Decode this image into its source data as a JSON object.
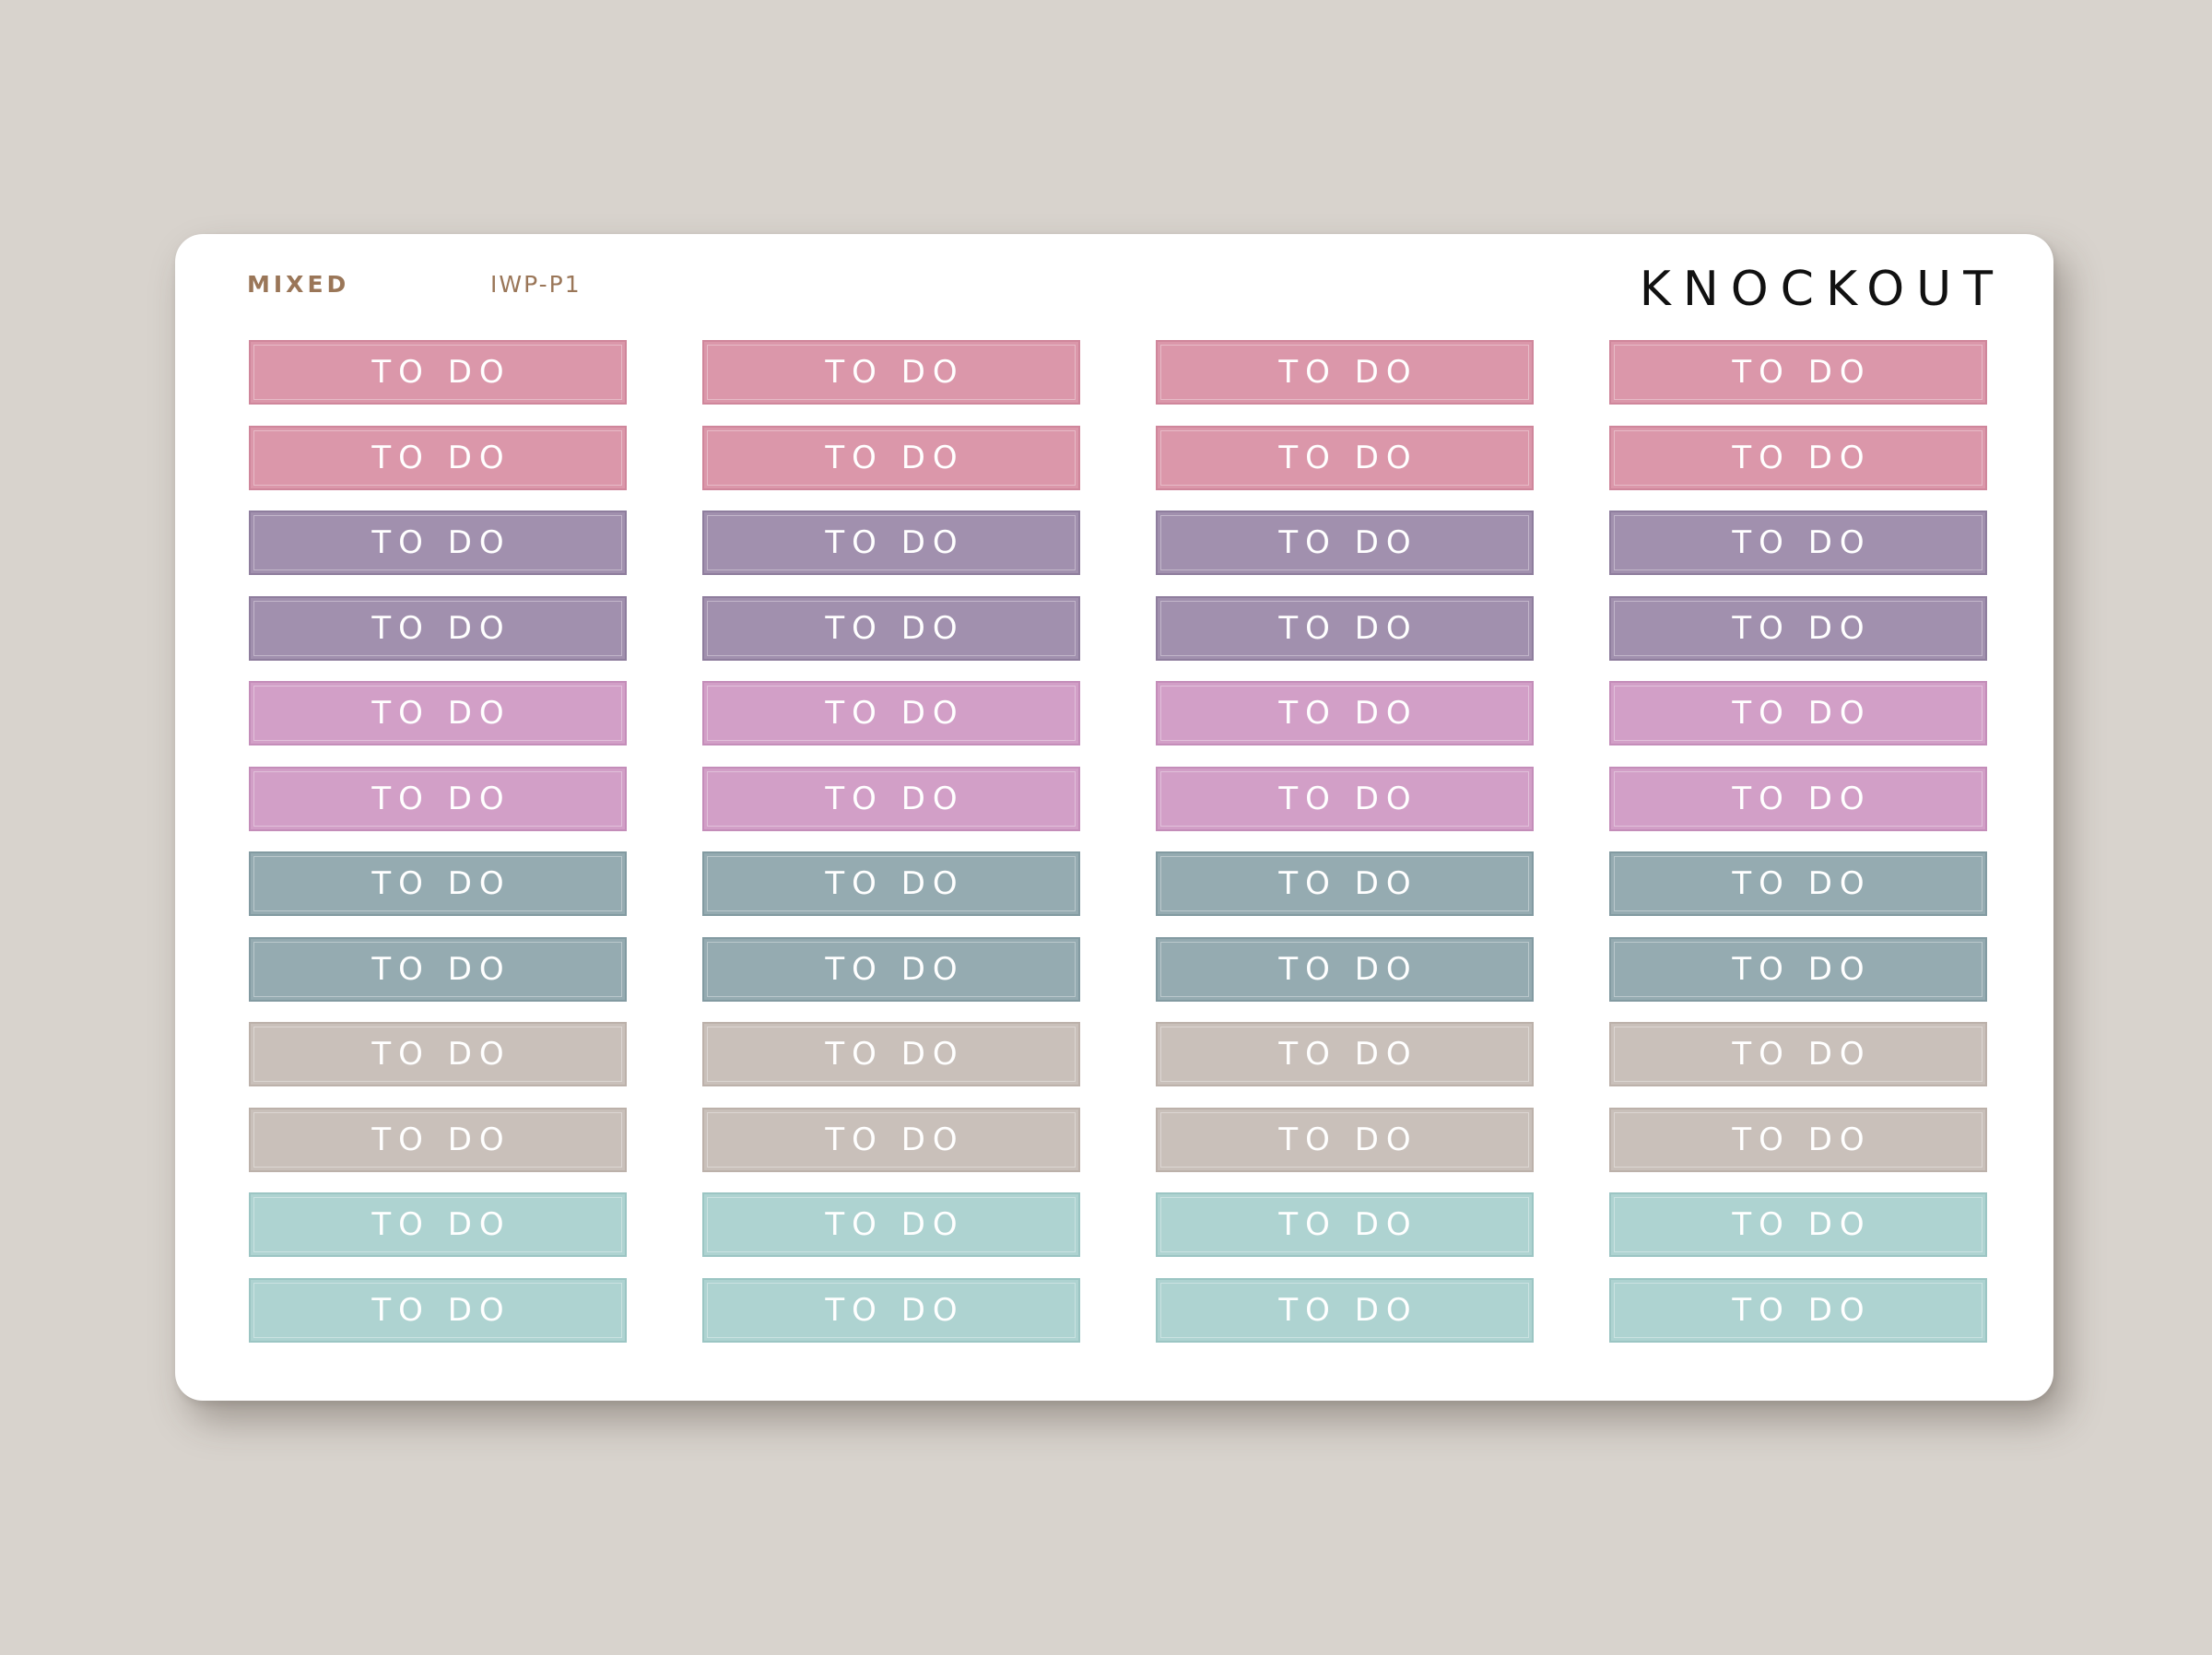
{
  "header": {
    "variant": "MIXED",
    "code": "IWP-P1",
    "brand": "KNOCKOUT"
  },
  "sticker_label": "TO DO",
  "columns": 4,
  "rows": [
    {
      "color": "#db97aa",
      "border": "#cf869b"
    },
    {
      "color": "#db97aa",
      "border": "#cf869b"
    },
    {
      "color": "#a190ae",
      "border": "#8e7d9d"
    },
    {
      "color": "#a190ae",
      "border": "#8e7d9d"
    },
    {
      "color": "#d29fc7",
      "border": "#c48db9"
    },
    {
      "color": "#d29fc7",
      "border": "#c48db9"
    },
    {
      "color": "#95abb1",
      "border": "#829aa1"
    },
    {
      "color": "#95abb1",
      "border": "#829aa1"
    },
    {
      "color": "#c9c0ba",
      "border": "#bcb1aa"
    },
    {
      "color": "#c9c0ba",
      "border": "#bcb1aa"
    },
    {
      "color": "#aed3d1",
      "border": "#9bc5c3"
    },
    {
      "color": "#aed3d1",
      "border": "#9bc5c3"
    }
  ]
}
